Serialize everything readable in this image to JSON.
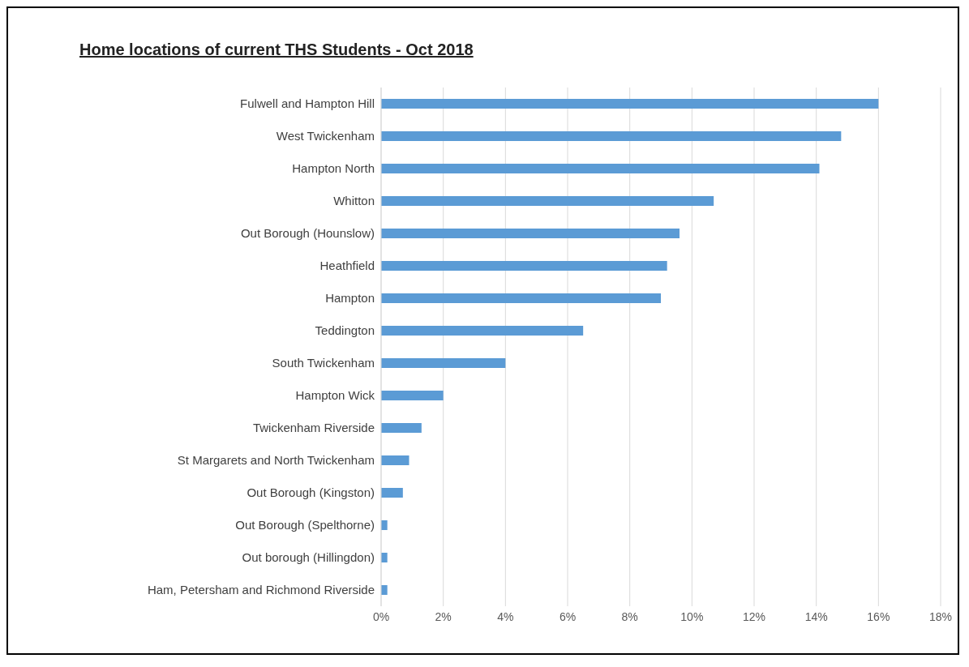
{
  "chart_data": {
    "type": "bar",
    "orientation": "horizontal",
    "title": "Home locations of current THS Students - Oct 2018",
    "categories": [
      "Fulwell and Hampton Hill",
      "West Twickenham",
      "Hampton North",
      "Whitton",
      "Out Borough (Hounslow)",
      "Heathfield",
      "Hampton",
      "Teddington",
      "South Twickenham",
      "Hampton Wick",
      "Twickenham Riverside",
      "St Margarets and North Twickenham",
      "Out Borough (Kingston)",
      "Out Borough (Spelthorne)",
      "Out borough (Hillingdon)",
      "Ham, Petersham and Richmond Riverside"
    ],
    "values": [
      16.0,
      14.8,
      14.1,
      10.7,
      9.6,
      9.2,
      9.0,
      6.5,
      4.0,
      2.0,
      1.3,
      0.9,
      0.7,
      0.2,
      0.2,
      0.2
    ],
    "color": "#5b9bd5",
    "xlim": [
      0,
      18
    ],
    "xticks": [
      {
        "value": 0,
        "label": "0%"
      },
      {
        "value": 2,
        "label": "2%"
      },
      {
        "value": 4,
        "label": "4%"
      },
      {
        "value": 6,
        "label": "6%"
      },
      {
        "value": 8,
        "label": "8%"
      },
      {
        "value": 10,
        "label": "10%"
      },
      {
        "value": 12,
        "label": "12%"
      },
      {
        "value": 14,
        "label": "14%"
      },
      {
        "value": 16,
        "label": "16%"
      },
      {
        "value": 18,
        "label": "18%"
      }
    ],
    "grid": "x"
  }
}
